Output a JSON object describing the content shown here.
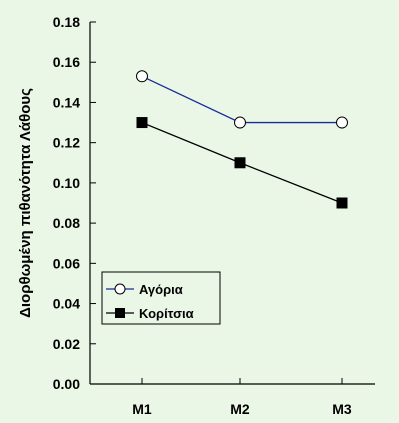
{
  "chart_data": {
    "type": "line",
    "categories": [
      "M1",
      "M2",
      "M3"
    ],
    "series": [
      {
        "name": "Αγόρια",
        "values": [
          0.153,
          0.13,
          0.13
        ],
        "color": "#1a2a9a",
        "marker": "open-circle"
      },
      {
        "name": "Κορίτσια",
        "values": [
          0.13,
          0.11,
          0.09
        ],
        "color": "#000000",
        "marker": "filled-square"
      }
    ],
    "ylabel": "Διορθωμένη πιθανότητα Λάθους",
    "xlabel": "",
    "ylim": [
      0,
      0.18
    ],
    "yticks": [
      "0.00",
      "0.02",
      "0.04",
      "0.06",
      "0.08",
      "0.10",
      "0.12",
      "0.14",
      "0.16",
      "0.18"
    ],
    "grid": false,
    "legend_position": "lower-left",
    "background": "#eaf7e7"
  }
}
